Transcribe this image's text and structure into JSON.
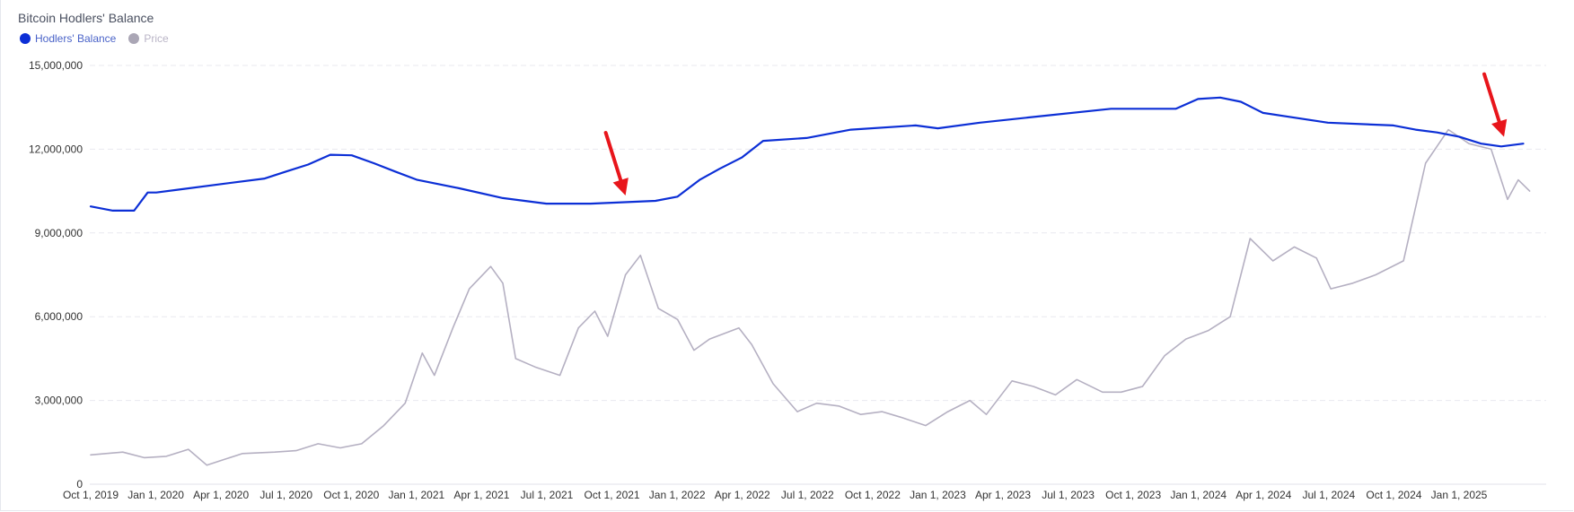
{
  "chart_data": {
    "type": "line",
    "title": "Bitcoin Hodlers' Balance",
    "legend_position": "top-left",
    "colors": {
      "balance": "#0c2fd6",
      "price": "#b5b0c2",
      "arrow": "#e8151b",
      "grid": "#e9e9ef"
    },
    "y_ticks": [
      "15,000,000",
      "12,000,000",
      "9,000,000",
      "6,000,000",
      "3,000,000",
      "0"
    ],
    "y_tick_values": [
      15000000,
      12000000,
      9000000,
      6000000,
      3000000,
      0
    ],
    "ylim": [
      0,
      15000000
    ],
    "x_ticks": [
      "Oct 1, 2019",
      "Jan 1, 2020",
      "Apr 1, 2020",
      "Jul 1, 2020",
      "Oct 1, 2020",
      "Jan 1, 2021",
      "Apr 1, 2021",
      "Jul 1, 2021",
      "Oct 1, 2021",
      "Jan 1, 2022",
      "Apr 1, 2022",
      "Jul 1, 2022",
      "Oct 1, 2022",
      "Jan 1, 2023",
      "Apr 1, 2023",
      "Jul 1, 2023",
      "Oct 1, 2023",
      "Jan 1, 2024",
      "Apr 1, 2024",
      "Jul 1, 2024",
      "Oct 1, 2024",
      "Jan 1, 2025"
    ],
    "grid": "horizontal-dashed",
    "series": [
      {
        "name": "Hodlers' Balance",
        "x": [
          "2019-10-01",
          "2019-11-01",
          "2019-12-01",
          "2019-12-20",
          "2020-01-01",
          "2020-02-01",
          "2020-04-01",
          "2020-06-01",
          "2020-07-01",
          "2020-08-01",
          "2020-09-01",
          "2020-10-01",
          "2020-11-01",
          "2020-12-01",
          "2021-01-01",
          "2021-03-01",
          "2021-05-01",
          "2021-07-01",
          "2021-09-01",
          "2021-10-15",
          "2021-12-01",
          "2022-01-01",
          "2022-02-01",
          "2022-03-01",
          "2022-04-01",
          "2022-05-01",
          "2022-07-01",
          "2022-09-01",
          "2022-12-01",
          "2023-01-01",
          "2023-03-01",
          "2023-06-01",
          "2023-09-01",
          "2023-12-01",
          "2024-01-01",
          "2024-02-01",
          "2024-03-01",
          "2024-04-01",
          "2024-07-01",
          "2024-10-01",
          "2024-11-01",
          "2024-12-01",
          "2025-01-01",
          "2025-02-01",
          "2025-03-01",
          "2025-04-01"
        ],
        "values": [
          9950000,
          9800000,
          9800000,
          10450000,
          10450000,
          10550000,
          10750000,
          10950000,
          11200000,
          11450000,
          11800000,
          11780000,
          11500000,
          11200000,
          10900000,
          10600000,
          10250000,
          10050000,
          10050000,
          10100000,
          10150000,
          10300000,
          10900000,
          11300000,
          11700000,
          12300000,
          12400000,
          12700000,
          12850000,
          12750000,
          12950000,
          13200000,
          13450000,
          13450000,
          13800000,
          13850000,
          13700000,
          13300000,
          12950000,
          12850000,
          12700000,
          12600000,
          12450000,
          12200000,
          12100000,
          12200000
        ]
      },
      {
        "name": "Price",
        "x": [
          "2019-10-01",
          "2019-11-15",
          "2019-12-15",
          "2020-01-15",
          "2020-02-15",
          "2020-03-12",
          "2020-04-01",
          "2020-05-01",
          "2020-06-15",
          "2020-07-15",
          "2020-08-15",
          "2020-09-15",
          "2020-10-15",
          "2020-11-15",
          "2020-12-15",
          "2021-01-08",
          "2021-01-25",
          "2021-02-20",
          "2021-03-15",
          "2021-04-14",
          "2021-05-01",
          "2021-05-19",
          "2021-06-15",
          "2021-07-20",
          "2021-08-15",
          "2021-09-07",
          "2021-09-25",
          "2021-10-20",
          "2021-11-10",
          "2021-12-05",
          "2022-01-01",
          "2022-01-24",
          "2022-02-15",
          "2022-03-28",
          "2022-04-15",
          "2022-05-15",
          "2022-06-18",
          "2022-07-15",
          "2022-08-15",
          "2022-09-15",
          "2022-10-15",
          "2022-11-10",
          "2022-12-15",
          "2023-01-15",
          "2023-02-15",
          "2023-03-10",
          "2023-04-15",
          "2023-05-15",
          "2023-06-15",
          "2023-07-15",
          "2023-08-20",
          "2023-09-15",
          "2023-10-15",
          "2023-11-15",
          "2023-12-15",
          "2024-01-15",
          "2024-02-15",
          "2024-03-14",
          "2024-04-15",
          "2024-05-15",
          "2024-06-15",
          "2024-07-05",
          "2024-08-05",
          "2024-09-06",
          "2024-10-15",
          "2024-11-15",
          "2024-12-17",
          "2025-01-15",
          "2025-02-15",
          "2025-03-10",
          "2025-03-25",
          "2025-04-10"
        ],
        "values": [
          1050000,
          1150000,
          950000,
          1000000,
          1250000,
          680000,
          850000,
          1100000,
          1150000,
          1200000,
          1450000,
          1300000,
          1450000,
          2100000,
          2900000,
          4700000,
          3900000,
          5600000,
          7000000,
          7800000,
          7200000,
          4500000,
          4200000,
          3900000,
          5600000,
          6200000,
          5300000,
          7500000,
          8200000,
          6300000,
          5900000,
          4800000,
          5200000,
          5600000,
          5000000,
          3600000,
          2600000,
          2900000,
          2800000,
          2500000,
          2600000,
          2400000,
          2100000,
          2600000,
          3000000,
          2500000,
          3700000,
          3500000,
          3200000,
          3750000,
          3300000,
          3300000,
          3500000,
          4600000,
          5200000,
          5500000,
          6000000,
          8800000,
          8000000,
          8500000,
          8100000,
          7000000,
          7200000,
          7500000,
          8000000,
          11500000,
          12700000,
          12200000,
          12000000,
          10200000,
          10900000,
          10500000
        ]
      }
    ],
    "annotations": [
      {
        "type": "arrow",
        "color": "#e8151b",
        "x": "2021-10-20",
        "value": 10150000
      },
      {
        "type": "arrow",
        "color": "#e8151b",
        "x": "2025-03-05",
        "value": 12250000
      }
    ]
  }
}
